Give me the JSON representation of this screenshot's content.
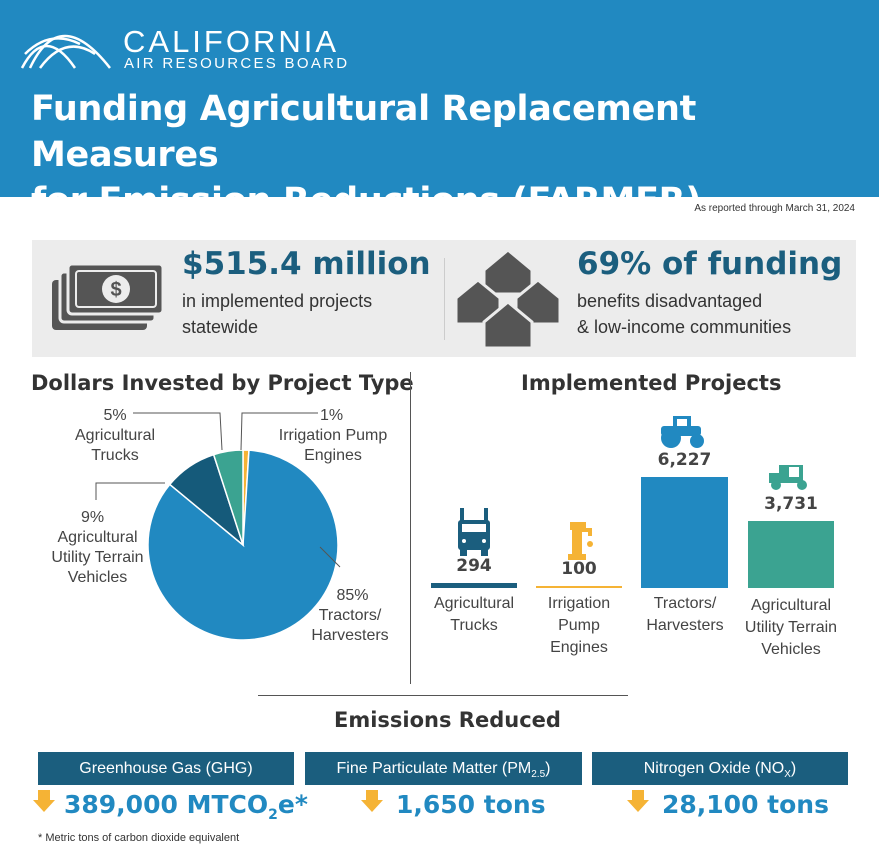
{
  "header": {
    "logo_name": "CALIFORNIA",
    "logo_sub": "AIR RESOURCES BOARD",
    "title_line1": "Funding Agricultural Replacement Measures",
    "title_line2": "for Emission Reductions (FARMER) Program"
  },
  "date_note": "As reported through March 31, 2024",
  "highlights": [
    {
      "value": "$515.4 million",
      "line1": "in implemented projects",
      "line2": "statewide",
      "icon": "money-icon"
    },
    {
      "value": "69% of funding",
      "line1": "benefits disadvantaged",
      "line2": "& low-income communities",
      "icon": "houses-icon"
    }
  ],
  "colors": {
    "header": "#2189c1",
    "dark": "#1b5e7e",
    "teal": "#3ba391",
    "orange": "#f5b335",
    "blue": "#2189c1"
  },
  "chart_data": [
    {
      "type": "pie",
      "title": "Dollars Invested by Project Type",
      "slices": [
        {
          "label": "Irrigation Pump Engines",
          "pct_label": "1%",
          "value": 1,
          "color": "#f5b335"
        },
        {
          "label": "Tractors/ Harvesters",
          "pct_label": "85%",
          "value": 85,
          "color": "#2189c1"
        },
        {
          "label": "Agricultural Utility Terrain Vehicles",
          "pct_label": "9%",
          "value": 9,
          "color": "#155a7a"
        },
        {
          "label": "Agricultural Trucks",
          "pct_label": "5%",
          "value": 5,
          "color": "#3ba391"
        }
      ]
    },
    {
      "type": "bar",
      "title": "Implemented Projects",
      "categories": [
        "Agricultural Trucks",
        "Irrigation Pump Engines",
        "Tractors/ Harvesters",
        "Agricultural Utility Terrain Vehicles"
      ],
      "values": [
        294,
        100,
        6227,
        3731
      ],
      "value_labels": [
        "294",
        "100",
        "6,227",
        "3,731"
      ],
      "colors": [
        "#1b5e7e",
        "#f5b335",
        "#2189c1",
        "#3ba391"
      ],
      "icons": [
        "truck-icon",
        "pump-icon",
        "tractor-icon",
        "utv-icon"
      ]
    }
  ],
  "emissions": {
    "title": "Emissions Reduced",
    "items": [
      {
        "label": "Greenhouse Gas (GHG)",
        "value": "389,000 MTCO",
        "sub": "2",
        "suffix": "e*"
      },
      {
        "label": "Fine Particulate Matter (PM",
        "label_sub": "2.5",
        "label_end": ")",
        "value": "1,650 tons"
      },
      {
        "label": "Nitrogen Oxide (NO",
        "label_sub": "X",
        "label_end": ")",
        "value": "28,100 tons"
      }
    ],
    "footnote": "* Metric tons of carbon dioxide equivalent"
  }
}
